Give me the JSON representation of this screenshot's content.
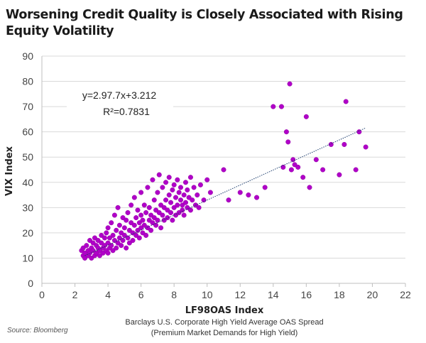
{
  "title": "Worsening Credit Quality is Closely Associated with Rising Equity Volatility",
  "source": "Source: Bloomberg",
  "chart_data": {
    "type": "scatter",
    "xlabel": "LF98OAS Index",
    "xsublabel_1": "Barclays U.S. Corporate High Yield Average OAS Spread",
    "xsublabel_2": "(Premium Market Demands for High Yield)",
    "ylabel": "VIX Index",
    "xlim": [
      0,
      22
    ],
    "ylim": [
      0,
      90
    ],
    "xticks": [
      "0",
      "2",
      "4",
      "6",
      "8",
      "10",
      "12",
      "14",
      "16",
      "18",
      "20",
      "22"
    ],
    "yticks": [
      "0",
      "10",
      "20",
      "30",
      "40",
      "50",
      "60",
      "70",
      "80",
      "90"
    ],
    "grid": "horizontal",
    "legend": "none",
    "point_color": "#b000c8",
    "trendline": {
      "slope": 2.977,
      "intercept": 3.212,
      "x_range": [
        2.6,
        19.6
      ],
      "color": "#1f3f6f"
    },
    "annotation_equation": "y=2.97.7x+3.212",
    "annotation_r2": "R²=0.7831",
    "points": [
      [
        2.4,
        13
      ],
      [
        2.5,
        11
      ],
      [
        2.5,
        14
      ],
      [
        2.6,
        10
      ],
      [
        2.6,
        12
      ],
      [
        2.7,
        15
      ],
      [
        2.8,
        11
      ],
      [
        2.8,
        13
      ],
      [
        2.9,
        17
      ],
      [
        2.9,
        12
      ],
      [
        3.0,
        10
      ],
      [
        3.0,
        14
      ],
      [
        3.1,
        13
      ],
      [
        3.1,
        16
      ],
      [
        3.2,
        11
      ],
      [
        3.2,
        18
      ],
      [
        3.3,
        12
      ],
      [
        3.3,
        15
      ],
      [
        3.4,
        14
      ],
      [
        3.4,
        17
      ],
      [
        3.5,
        11
      ],
      [
        3.5,
        13
      ],
      [
        3.6,
        16
      ],
      [
        3.6,
        19
      ],
      [
        3.7,
        12
      ],
      [
        3.7,
        14
      ],
      [
        3.8,
        18
      ],
      [
        3.8,
        15
      ],
      [
        3.9,
        13
      ],
      [
        3.9,
        20
      ],
      [
        4.0,
        12
      ],
      [
        4.0,
        16
      ],
      [
        4.0,
        22
      ],
      [
        4.1,
        14
      ],
      [
        4.1,
        18
      ],
      [
        4.2,
        15
      ],
      [
        4.2,
        24
      ],
      [
        4.3,
        13
      ],
      [
        4.3,
        19
      ],
      [
        4.4,
        17
      ],
      [
        4.4,
        27
      ],
      [
        4.5,
        14
      ],
      [
        4.5,
        21
      ],
      [
        4.6,
        16
      ],
      [
        4.6,
        30
      ],
      [
        4.7,
        18
      ],
      [
        4.7,
        23
      ],
      [
        4.8,
        15
      ],
      [
        4.8,
        20
      ],
      [
        4.9,
        26
      ],
      [
        4.9,
        17
      ],
      [
        5.0,
        19
      ],
      [
        5.0,
        22
      ],
      [
        5.1,
        14
      ],
      [
        5.1,
        25
      ],
      [
        5.2,
        18
      ],
      [
        5.2,
        28
      ],
      [
        5.3,
        16
      ],
      [
        5.3,
        21
      ],
      [
        5.4,
        24
      ],
      [
        5.4,
        31
      ],
      [
        5.5,
        17
      ],
      [
        5.5,
        20
      ],
      [
        5.6,
        23
      ],
      [
        5.6,
        34
      ],
      [
        5.7,
        19
      ],
      [
        5.7,
        26
      ],
      [
        5.8,
        21
      ],
      [
        5.8,
        29
      ],
      [
        5.9,
        18
      ],
      [
        5.9,
        24
      ],
      [
        6.0,
        22
      ],
      [
        6.0,
        27
      ],
      [
        6.0,
        36
      ],
      [
        6.1,
        20
      ],
      [
        6.1,
        25
      ],
      [
        6.2,
        23
      ],
      [
        6.2,
        31
      ],
      [
        6.3,
        19
      ],
      [
        6.3,
        28
      ],
      [
        6.4,
        22
      ],
      [
        6.4,
        38
      ],
      [
        6.5,
        25
      ],
      [
        6.5,
        30
      ],
      [
        6.6,
        21
      ],
      [
        6.6,
        27
      ],
      [
        6.7,
        24
      ],
      [
        6.7,
        41
      ],
      [
        6.8,
        26
      ],
      [
        6.8,
        33
      ],
      [
        6.9,
        23
      ],
      [
        6.9,
        29
      ],
      [
        7.0,
        25
      ],
      [
        7.0,
        36
      ],
      [
        7.1,
        28
      ],
      [
        7.1,
        43
      ],
      [
        7.2,
        22
      ],
      [
        7.2,
        31
      ],
      [
        7.3,
        27
      ],
      [
        7.3,
        38
      ],
      [
        7.4,
        25
      ],
      [
        7.4,
        30
      ],
      [
        7.5,
        33
      ],
      [
        7.5,
        40
      ],
      [
        7.6,
        26
      ],
      [
        7.6,
        29
      ],
      [
        7.7,
        35
      ],
      [
        7.7,
        42
      ],
      [
        7.8,
        28
      ],
      [
        7.8,
        32
      ],
      [
        7.9,
        37
      ],
      [
        7.9,
        25
      ],
      [
        8.0,
        30
      ],
      [
        8.0,
        39
      ],
      [
        8.1,
        27
      ],
      [
        8.1,
        34
      ],
      [
        8.2,
        31
      ],
      [
        8.2,
        41
      ],
      [
        8.3,
        28
      ],
      [
        8.3,
        36
      ],
      [
        8.4,
        33
      ],
      [
        8.4,
        38
      ],
      [
        8.5,
        29
      ],
      [
        8.5,
        31
      ],
      [
        8.6,
        35
      ],
      [
        8.6,
        27
      ],
      [
        8.7,
        32
      ],
      [
        8.7,
        40
      ],
      [
        8.8,
        30
      ],
      [
        8.8,
        37
      ],
      [
        8.9,
        34
      ],
      [
        9.0,
        29
      ],
      [
        9.0,
        42
      ],
      [
        9.1,
        33
      ],
      [
        9.2,
        38
      ],
      [
        9.3,
        31
      ],
      [
        9.4,
        35
      ],
      [
        9.5,
        30
      ],
      [
        9.6,
        39
      ],
      [
        9.8,
        33
      ],
      [
        10.0,
        41
      ],
      [
        10.2,
        36
      ],
      [
        11.0,
        45
      ],
      [
        11.3,
        33
      ],
      [
        12.0,
        36
      ],
      [
        12.5,
        35
      ],
      [
        13.0,
        34
      ],
      [
        13.5,
        38
      ],
      [
        14.0,
        70
      ],
      [
        14.5,
        70
      ],
      [
        14.8,
        60
      ],
      [
        14.9,
        56
      ],
      [
        15.0,
        79
      ],
      [
        15.1,
        45
      ],
      [
        15.2,
        49
      ],
      [
        15.3,
        47
      ],
      [
        15.5,
        46
      ],
      [
        15.8,
        42
      ],
      [
        16.0,
        66
      ],
      [
        16.2,
        38
      ],
      [
        16.6,
        49
      ],
      [
        17.0,
        45
      ],
      [
        17.5,
        55
      ],
      [
        18.0,
        43
      ],
      [
        18.3,
        55
      ],
      [
        18.4,
        72
      ],
      [
        19.0,
        45
      ],
      [
        19.2,
        60
      ],
      [
        19.6,
        54
      ],
      [
        14.6,
        46
      ]
    ]
  }
}
